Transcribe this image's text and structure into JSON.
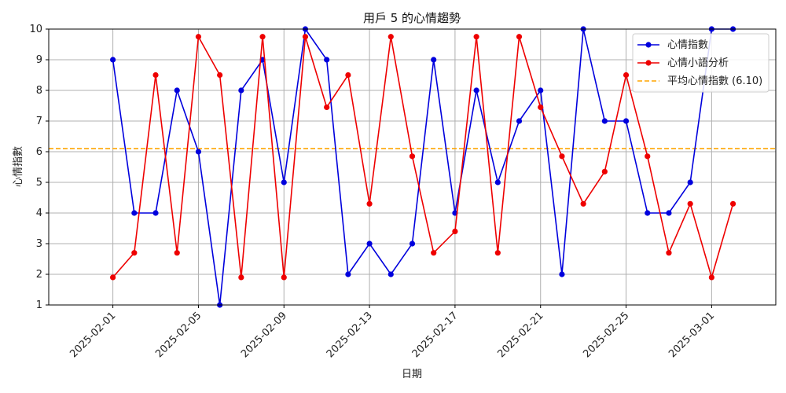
{
  "chart_data": {
    "type": "line",
    "title": "用戶 5 的心情趨勢",
    "xlabel": "日期",
    "ylabel": "心情指數",
    "x_tick_labels": [
      "2025-02-01",
      "2025-02-05",
      "2025-02-09",
      "2025-02-13",
      "2025-02-17",
      "2025-02-21",
      "2025-02-25",
      "2025-03-01"
    ],
    "y_tick_labels": [
      "1",
      "2",
      "3",
      "4",
      "5",
      "6",
      "7",
      "8",
      "9",
      "10"
    ],
    "ylim": [
      1,
      10
    ],
    "xlim": [
      "2025-01-29",
      "2025-03-04"
    ],
    "grid": true,
    "legend_position": "top-right",
    "x": [
      "2025-02-01",
      "2025-02-02",
      "2025-02-03",
      "2025-02-04",
      "2025-02-05",
      "2025-02-06",
      "2025-02-07",
      "2025-02-08",
      "2025-02-09",
      "2025-02-10",
      "2025-02-11",
      "2025-02-12",
      "2025-02-13",
      "2025-02-14",
      "2025-02-15",
      "2025-02-16",
      "2025-02-17",
      "2025-02-18",
      "2025-02-19",
      "2025-02-20",
      "2025-02-21",
      "2025-02-22",
      "2025-02-23",
      "2025-02-24",
      "2025-02-25",
      "2025-02-26",
      "2025-02-27",
      "2025-02-28",
      "2025-03-01",
      "2025-03-02"
    ],
    "series": [
      {
        "name": "心情指數",
        "color": "#0000dd",
        "values": [
          9,
          4,
          4,
          8,
          6,
          1,
          8,
          9,
          5,
          10,
          9,
          2,
          3,
          2,
          3,
          9,
          4,
          8,
          5,
          7,
          8,
          2,
          10,
          7,
          7,
          4,
          4,
          5,
          10,
          10
        ]
      },
      {
        "name": "心情小語分析",
        "color": "#ee0000",
        "values": [
          1.9,
          2.7,
          8.5,
          2.7,
          9.75,
          8.5,
          1.9,
          9.75,
          1.9,
          9.75,
          7.45,
          8.5,
          4.3,
          9.75,
          5.85,
          2.7,
          3.4,
          9.75,
          2.7,
          9.75,
          7.45,
          5.85,
          4.3,
          5.35,
          8.5,
          5.85,
          2.7,
          4.3,
          1.9,
          4.3
        ]
      }
    ],
    "reference_line": {
      "name": "平均心情指數 (6.10)",
      "value": 6.1,
      "color": "#ffa500",
      "style": "dashed"
    }
  }
}
